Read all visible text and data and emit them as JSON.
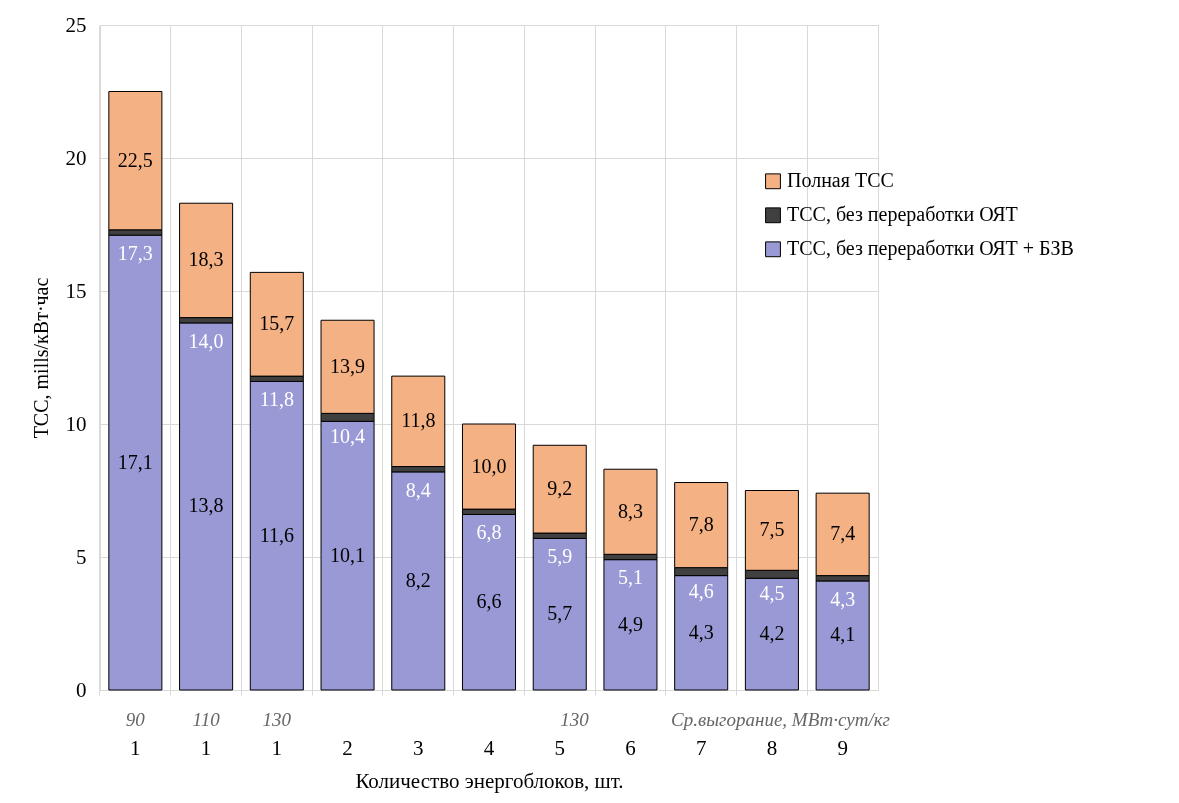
{
  "chart_data": {
    "type": "bar",
    "stacked": true,
    "xlabel": "Количество энергоблоков, шт.",
    "ylabel": "ТСС, mills/кВт·час",
    "categories": [
      "1",
      "1",
      "1",
      "2",
      "3",
      "4",
      "5",
      "6",
      "7",
      "8",
      "9"
    ],
    "series": [
      {
        "name": "ТСС, без переработки ОЯТ + БЗВ",
        "color": "#9999d6",
        "values": [
          17.1,
          13.8,
          11.6,
          10.1,
          8.2,
          6.6,
          5.7,
          4.9,
          4.3,
          4.2,
          4.1
        ],
        "value_labels": [
          "17,1",
          "13,8",
          "11,6",
          "10,1",
          "8,2",
          "6,6",
          "5,7",
          "4,9",
          "4,3",
          "4,2",
          "4,1"
        ]
      },
      {
        "name": "ТСС, без переработки ОЯТ",
        "color": "#404040",
        "values": [
          0.2,
          0.2,
          0.2,
          0.3,
          0.2,
          0.2,
          0.2,
          0.2,
          0.3,
          0.3,
          0.2
        ]
      },
      {
        "name": "Полная ТСС",
        "color": "#f4b183",
        "values": [
          5.2,
          4.3,
          3.9,
          3.5,
          3.4,
          3.2,
          3.3,
          3.2,
          3.2,
          3.0,
          3.1
        ]
      }
    ],
    "totals": [
      "22,5",
      "18,3",
      "15,7",
      "13,9",
      "11,8",
      "10,0",
      "9,2",
      "8,3",
      "7,8",
      "7,5",
      "7,4"
    ],
    "ylim": [
      0,
      25
    ],
    "yticks": [
      0,
      5,
      10,
      15,
      20,
      25
    ],
    "grid": true,
    "legend": "right",
    "annotations": [
      "90",
      "110",
      "130",
      "130",
      "Ср.выгорание, МВт·сут/кг",
      {
        "text": "17,3",
        "x": "1",
        "y": 17.3
      },
      {
        "text": "14,0",
        "y": 14.0
      },
      {
        "text": "11,8",
        "y": 11.8
      },
      {
        "text": "10,4",
        "x": "2",
        "y": 10.4
      },
      {
        "text": "8,4",
        "x": "3",
        "y": 8.4
      },
      {
        "text": "6,8",
        "x": "4",
        "y": 6.8
      },
      {
        "text": "5,9",
        "x": "5",
        "y": 5.9
      },
      {
        "text": "5,1",
        "x": "6",
        "y": 5.1
      },
      {
        "text": "4,6",
        "x": "7",
        "y": 4.6
      },
      {
        "text": "4,5",
        "x": "8",
        "y": 4.5
      },
      {
        "text": "4,3",
        "x": "9",
        "y": 4.3
      }
    ]
  }
}
